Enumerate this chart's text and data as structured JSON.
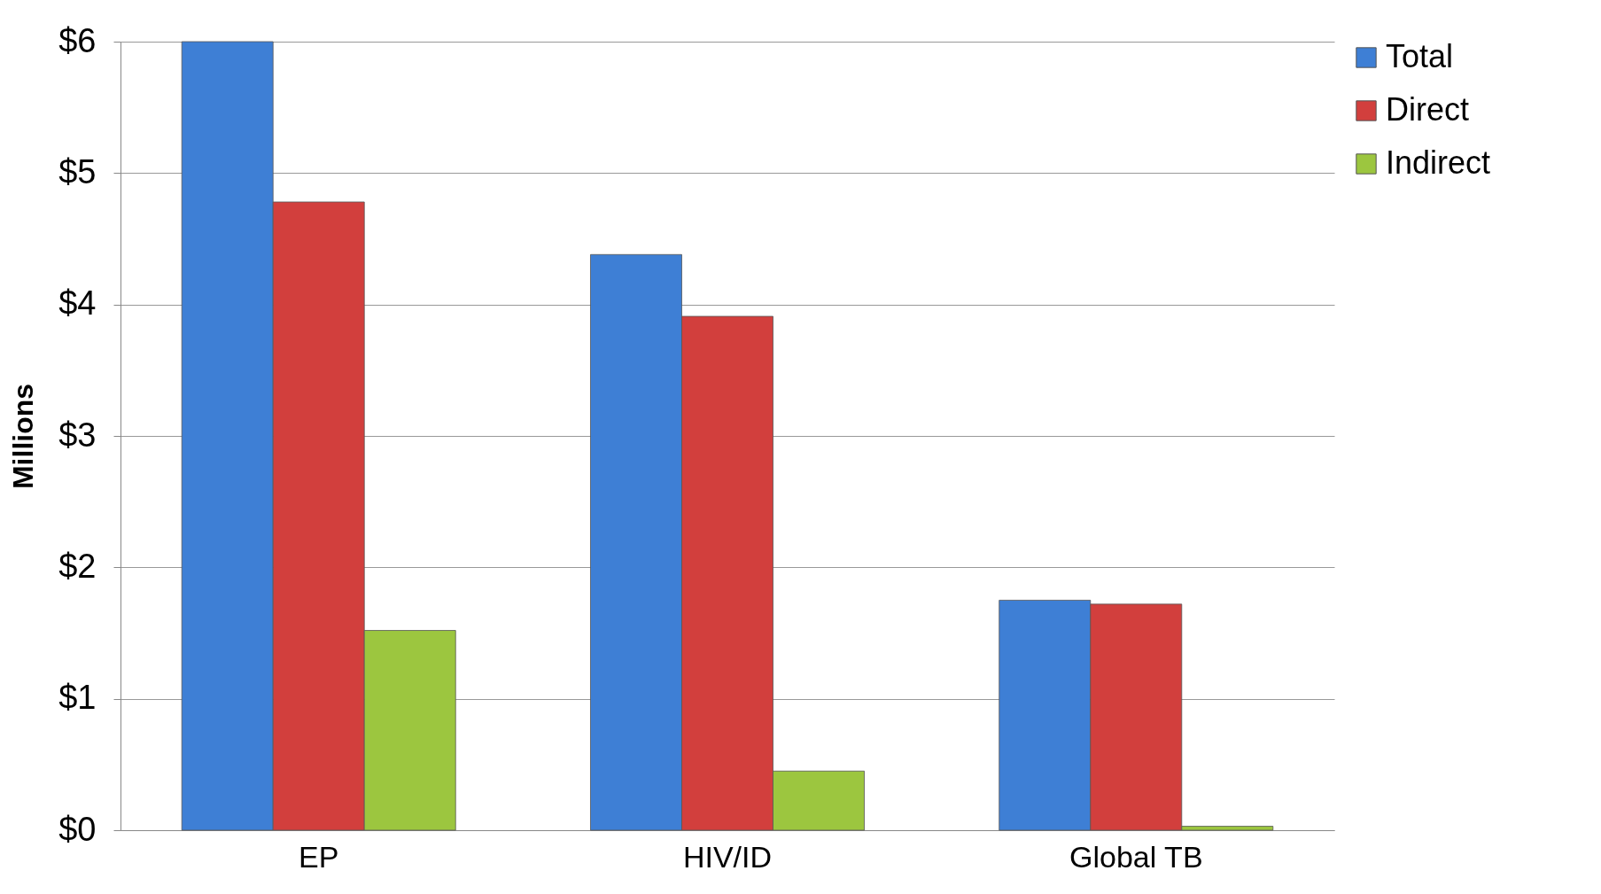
{
  "chart_data": {
    "type": "bar",
    "ylabel": "Millions",
    "categories": [
      "EP",
      "HIV/ID",
      "Global TB"
    ],
    "series": [
      {
        "name": "Total",
        "color": "#3e7fd5",
        "values": [
          6.0,
          4.38,
          1.75
        ]
      },
      {
        "name": "Direct",
        "color": "#d23f3d",
        "values": [
          4.78,
          3.91,
          1.72
        ]
      },
      {
        "name": "Indirect",
        "color": "#9cc63f",
        "values": [
          1.52,
          0.45,
          0.03
        ]
      }
    ],
    "ylim": [
      0,
      6
    ],
    "yticks": [
      {
        "value": 0,
        "label": "$0"
      },
      {
        "value": 1,
        "label": "$1"
      },
      {
        "value": 2,
        "label": "$2"
      },
      {
        "value": 3,
        "label": "$3"
      },
      {
        "value": 4,
        "label": "$4"
      },
      {
        "value": 5,
        "label": "$5"
      },
      {
        "value": 6,
        "label": "$6"
      }
    ],
    "grid": "y",
    "legend": "right"
  }
}
